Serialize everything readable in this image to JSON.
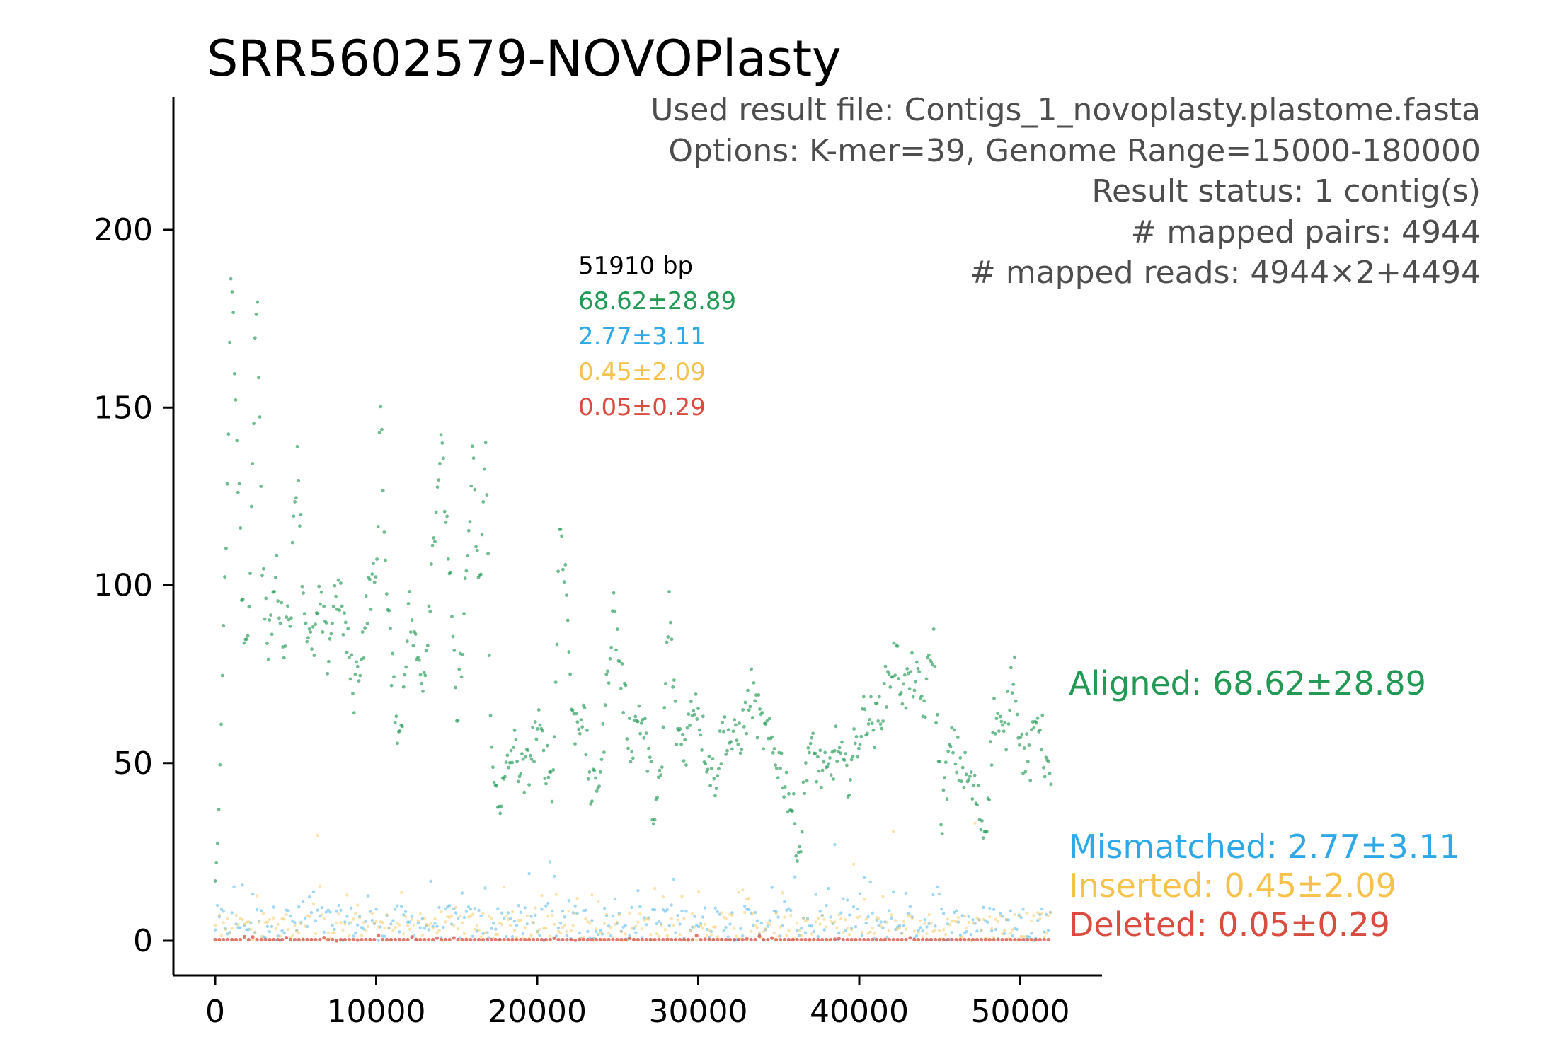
{
  "chart_data": {
    "type": "scatter",
    "title": "SRR5602579-NOVOPlasty",
    "xlabel": "",
    "ylabel": "",
    "xlim": [
      -2600,
      54700
    ],
    "ylim": [
      -10,
      240
    ],
    "x_ticks": [
      0,
      10000,
      20000,
      30000,
      40000,
      50000
    ],
    "y_ticks": [
      0,
      50,
      100,
      150,
      200
    ],
    "genome_length": 51910,
    "grid": false,
    "info_lines": [
      "Used result file: Contigs_1_novoplasty.plastome.fasta",
      "Options: K-mer=39, Genome Range=15000-180000",
      "Result status: 1 contig(s)",
      "# mapped pairs: 4944",
      "# mapped reads: 4944×2+4494"
    ],
    "summary": {
      "length_label": "51910 bp",
      "aligned": "68.62±28.89",
      "mismatched": "2.77±3.11",
      "inserted": "0.45±2.09",
      "deleted": "0.05±0.29"
    },
    "series": [
      {
        "name": "Aligned",
        "label": "Aligned: 68.62±28.89",
        "color": "#229954",
        "mean": 68.62,
        "sd": 28.89,
        "profile": [
          [
            0,
            15
          ],
          [
            300,
            45
          ],
          [
            600,
            100
          ],
          [
            1000,
            185
          ],
          [
            1300,
            150
          ],
          [
            1700,
            95
          ],
          [
            2000,
            75
          ],
          [
            2600,
            190
          ],
          [
            2900,
            110
          ],
          [
            3300,
            80
          ],
          [
            3800,
            105
          ],
          [
            4200,
            85
          ],
          [
            4700,
            95
          ],
          [
            5100,
            140
          ],
          [
            5500,
            95
          ],
          [
            6000,
            80
          ],
          [
            6500,
            95
          ],
          [
            7000,
            80
          ],
          [
            7500,
            100
          ],
          [
            8000,
            90
          ],
          [
            8600,
            70
          ],
          [
            9200,
            85
          ],
          [
            9600,
            100
          ],
          [
            10000,
            100
          ],
          [
            10300,
            155
          ],
          [
            10600,
            100
          ],
          [
            11000,
            75
          ],
          [
            11500,
            55
          ],
          [
            12000,
            95
          ],
          [
            12500,
            80
          ],
          [
            13000,
            75
          ],
          [
            13500,
            110
          ],
          [
            14000,
            140
          ],
          [
            14500,
            110
          ],
          [
            15000,
            60
          ],
          [
            15500,
            95
          ],
          [
            16000,
            135
          ],
          [
            16400,
            95
          ],
          [
            16800,
            140
          ],
          [
            17200,
            45
          ],
          [
            17800,
            40
          ],
          [
            18500,
            55
          ],
          [
            19200,
            45
          ],
          [
            20000,
            60
          ],
          [
            20600,
            50
          ],
          [
            21000,
            45
          ],
          [
            21400,
            120
          ],
          [
            21800,
            100
          ],
          [
            22200,
            60
          ],
          [
            22800,
            65
          ],
          [
            23400,
            40
          ],
          [
            24000,
            50
          ],
          [
            24700,
            95
          ],
          [
            25200,
            75
          ],
          [
            25800,
            55
          ],
          [
            26300,
            65
          ],
          [
            26800,
            55
          ],
          [
            27300,
            35
          ],
          [
            27700,
            45
          ],
          [
            28200,
            95
          ],
          [
            28600,
            60
          ],
          [
            29200,
            55
          ],
          [
            29800,
            70
          ],
          [
            30400,
            55
          ],
          [
            31000,
            45
          ],
          [
            31600,
            60
          ],
          [
            32200,
            55
          ],
          [
            32800,
            60
          ],
          [
            33300,
            70
          ],
          [
            33900,
            60
          ],
          [
            34500,
            55
          ],
          [
            35100,
            50
          ],
          [
            35700,
            40
          ],
          [
            36300,
            25
          ],
          [
            36800,
            55
          ],
          [
            37400,
            50
          ],
          [
            38000,
            45
          ],
          [
            38600,
            55
          ],
          [
            39200,
            45
          ],
          [
            39800,
            55
          ],
          [
            40400,
            65
          ],
          [
            41000,
            60
          ],
          [
            41600,
            70
          ],
          [
            42200,
            80
          ],
          [
            42800,
            70
          ],
          [
            43400,
            75
          ],
          [
            44000,
            65
          ],
          [
            44600,
            85
          ],
          [
            45100,
            35
          ],
          [
            45700,
            55
          ],
          [
            46200,
            50
          ],
          [
            46800,
            45
          ],
          [
            47300,
            40
          ],
          [
            47800,
            30
          ],
          [
            48400,
            65
          ],
          [
            49000,
            55
          ],
          [
            49600,
            80
          ],
          [
            50000,
            55
          ],
          [
            50600,
            50
          ],
          [
            51100,
            65
          ],
          [
            51600,
            50
          ],
          [
            51910,
            40
          ]
        ]
      },
      {
        "name": "Mismatched",
        "label": "Mismatched: 2.77±3.11",
        "color": "#2EA8E6",
        "mean": 2.77,
        "sd": 3.11
      },
      {
        "name": "Inserted",
        "label": "Inserted: 0.45±2.09",
        "color": "#F6C24C",
        "mean": 0.45,
        "sd": 2.09
      },
      {
        "name": "Deleted",
        "label": "Deleted: 0.05±0.29",
        "color": "#D94C3F",
        "mean": 0.05,
        "sd": 0.29
      }
    ]
  },
  "colors": {
    "aligned": "#229954",
    "mismatched": "#2EA8E6",
    "inserted": "#F6C24C",
    "deleted": "#D94C3F",
    "info_text": "#4d4d4d",
    "axis": "#000000"
  }
}
